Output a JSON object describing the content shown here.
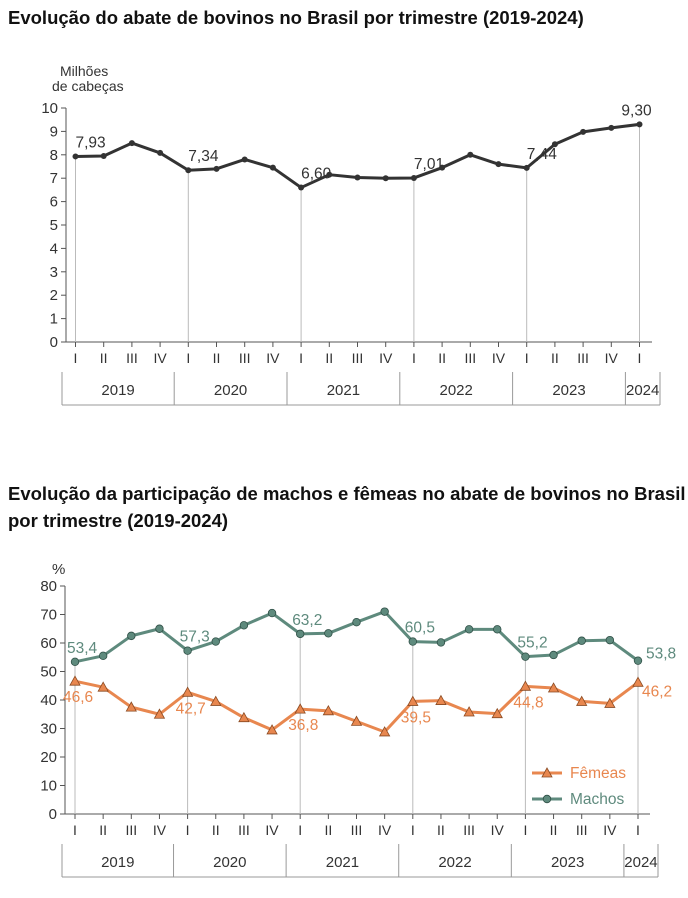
{
  "charts_meta": {
    "chart1_title": "Evolução do abate de bovinos no Brasil por trimestre (2019-2024)",
    "chart2_title": "Evolução da participação de machos e fêmeas no abate de bovinos no Brasil por trimestre (2019-2024)"
  },
  "chart_data": [
    {
      "type": "line",
      "title": "Evolução do abate de bovinos no Brasil por trimestre (2019-2024)",
      "ylabel": "Milhões de cabeças",
      "ylim": [
        0,
        10
      ],
      "yticks": [
        0,
        1,
        2,
        3,
        4,
        5,
        6,
        7,
        8,
        9,
        10
      ],
      "quarters": [
        "I",
        "II",
        "III",
        "IV",
        "I",
        "II",
        "III",
        "IV",
        "I",
        "II",
        "III",
        "IV",
        "I",
        "II",
        "III",
        "IV",
        "I",
        "II",
        "III",
        "IV",
        "I"
      ],
      "years": [
        "2019",
        "2020",
        "2021",
        "2022",
        "2023",
        "2024"
      ],
      "series": [
        {
          "color": "#333333",
          "values": [
            7.93,
            7.95,
            8.5,
            8.08,
            7.34,
            7.4,
            7.8,
            7.45,
            6.6,
            7.15,
            7.03,
            7.0,
            7.01,
            7.45,
            8.0,
            7.6,
            7.44,
            8.45,
            8.98,
            9.15,
            9.3
          ]
        }
      ],
      "annotations": [
        {
          "index": 0,
          "label": "7,93"
        },
        {
          "index": 4,
          "label": "7,34"
        },
        {
          "index": 8,
          "label": "6,60"
        },
        {
          "index": 12,
          "label": "7,01"
        },
        {
          "index": 16,
          "label": "7,44"
        },
        {
          "index": 20,
          "label": "9,30"
        }
      ],
      "grid": false
    },
    {
      "type": "line",
      "title": "Evolução da participação de machos e fêmeas no abate de bovinos no Brasil por trimestre (2019-2024)",
      "ylabel": "%",
      "ylim": [
        0,
        80
      ],
      "yticks": [
        0,
        10,
        20,
        30,
        40,
        50,
        60,
        70,
        80
      ],
      "quarters": [
        "I",
        "II",
        "III",
        "IV",
        "I",
        "II",
        "III",
        "IV",
        "I",
        "II",
        "III",
        "IV",
        "I",
        "II",
        "III",
        "IV",
        "I",
        "II",
        "III",
        "IV",
        "I"
      ],
      "years": [
        "2019",
        "2020",
        "2021",
        "2022",
        "2023",
        "2024"
      ],
      "legend_position": "bottom-right",
      "series": [
        {
          "name": "Fêmeas",
          "color": "#e8874f",
          "marker": "triangle",
          "values": [
            46.6,
            44.5,
            37.5,
            35.0,
            42.7,
            39.5,
            33.8,
            29.5,
            36.8,
            36.2,
            32.5,
            28.8,
            39.5,
            39.8,
            35.8,
            35.2,
            44.8,
            44.2,
            39.5,
            38.8,
            46.2
          ]
        },
        {
          "name": "Machos",
          "color": "#5e8a7d",
          "marker": "circle",
          "values": [
            53.4,
            55.5,
            62.5,
            65.0,
            57.3,
            60.5,
            66.2,
            70.5,
            63.2,
            63.4,
            67.3,
            71.0,
            60.5,
            60.2,
            64.8,
            64.8,
            55.2,
            55.8,
            60.8,
            61.0,
            53.8
          ]
        }
      ],
      "annotations_femeas": [
        {
          "index": 0,
          "label": "46,6"
        },
        {
          "index": 4,
          "label": "42,7"
        },
        {
          "index": 8,
          "label": "36,8"
        },
        {
          "index": 12,
          "label": "39,5"
        },
        {
          "index": 16,
          "label": "44,8"
        },
        {
          "index": 20,
          "label": "46,2"
        }
      ],
      "annotations_machos": [
        {
          "index": 0,
          "label": "53,4"
        },
        {
          "index": 4,
          "label": "57,3"
        },
        {
          "index": 8,
          "label": "63,2"
        },
        {
          "index": 12,
          "label": "60,5"
        },
        {
          "index": 16,
          "label": "55,2"
        },
        {
          "index": 20,
          "label": "53,8"
        }
      ],
      "grid": false
    }
  ]
}
